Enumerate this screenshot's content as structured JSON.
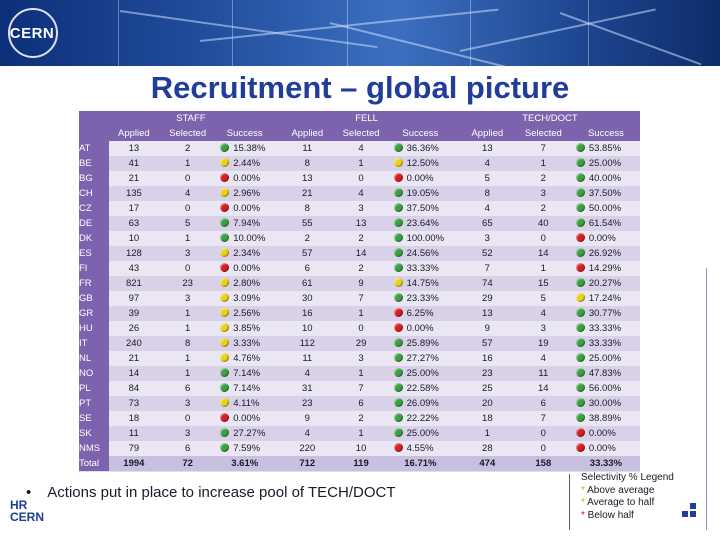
{
  "banner": {
    "logo_text": "CERN"
  },
  "title": "Recruitment – global picture",
  "colors": {
    "green": "#3aa040",
    "yellow": "#e8d21a",
    "red": "#d42020",
    "header_purple": "#7d63ad",
    "title_blue": "#1f3d99"
  },
  "table": {
    "groups": [
      "STAFF",
      "FELL",
      "TECH/DOCT"
    ],
    "subheaders": [
      "Applied",
      "Selected",
      "Success"
    ],
    "rows": [
      {
        "code": "AT",
        "staff": [
          "13",
          "2",
          "15.38%",
          "green"
        ],
        "fell": [
          "11",
          "4",
          "36.36%",
          "green"
        ],
        "tech": [
          "13",
          "7",
          "53.85%",
          "green"
        ]
      },
      {
        "code": "BE",
        "staff": [
          "41",
          "1",
          "2.44%",
          "yellow"
        ],
        "fell": [
          "8",
          "1",
          "12.50%",
          "yellow"
        ],
        "tech": [
          "4",
          "1",
          "25.00%",
          "green"
        ]
      },
      {
        "code": "BG",
        "staff": [
          "21",
          "0",
          "0.00%",
          "red"
        ],
        "fell": [
          "13",
          "0",
          "0.00%",
          "red"
        ],
        "tech": [
          "5",
          "2",
          "40.00%",
          "green"
        ]
      },
      {
        "code": "CH",
        "staff": [
          "135",
          "4",
          "2.96%",
          "yellow"
        ],
        "fell": [
          "21",
          "4",
          "19.05%",
          "green"
        ],
        "tech": [
          "8",
          "3",
          "37.50%",
          "green"
        ]
      },
      {
        "code": "CZ",
        "staff": [
          "17",
          "0",
          "0.00%",
          "red"
        ],
        "fell": [
          "8",
          "3",
          "37.50%",
          "green"
        ],
        "tech": [
          "4",
          "2",
          "50.00%",
          "green"
        ]
      },
      {
        "code": "DE",
        "staff": [
          "63",
          "5",
          "7.94%",
          "green"
        ],
        "fell": [
          "55",
          "13",
          "23.64%",
          "green"
        ],
        "tech": [
          "65",
          "40",
          "61.54%",
          "green"
        ]
      },
      {
        "code": "DK",
        "staff": [
          "10",
          "1",
          "10.00%",
          "green"
        ],
        "fell": [
          "2",
          "2",
          "100.00%",
          "green"
        ],
        "tech": [
          "3",
          "0",
          "0.00%",
          "red"
        ]
      },
      {
        "code": "ES",
        "staff": [
          "128",
          "3",
          "2.34%",
          "yellow"
        ],
        "fell": [
          "57",
          "14",
          "24.56%",
          "green"
        ],
        "tech": [
          "52",
          "14",
          "26.92%",
          "green"
        ]
      },
      {
        "code": "FI",
        "staff": [
          "43",
          "0",
          "0.00%",
          "red"
        ],
        "fell": [
          "6",
          "2",
          "33.33%",
          "green"
        ],
        "tech": [
          "7",
          "1",
          "14.29%",
          "red"
        ]
      },
      {
        "code": "FR",
        "staff": [
          "821",
          "23",
          "2.80%",
          "yellow"
        ],
        "fell": [
          "61",
          "9",
          "14.75%",
          "yellow"
        ],
        "tech": [
          "74",
          "15",
          "20.27%",
          "green"
        ]
      },
      {
        "code": "GB",
        "staff": [
          "97",
          "3",
          "3.09%",
          "yellow"
        ],
        "fell": [
          "30",
          "7",
          "23.33%",
          "green"
        ],
        "tech": [
          "29",
          "5",
          "17.24%",
          "yellow"
        ]
      },
      {
        "code": "GR",
        "staff": [
          "39",
          "1",
          "2.56%",
          "yellow"
        ],
        "fell": [
          "16",
          "1",
          "6.25%",
          "red"
        ],
        "tech": [
          "13",
          "4",
          "30.77%",
          "green"
        ]
      },
      {
        "code": "HU",
        "staff": [
          "26",
          "1",
          "3.85%",
          "yellow"
        ],
        "fell": [
          "10",
          "0",
          "0.00%",
          "red"
        ],
        "tech": [
          "9",
          "3",
          "33.33%",
          "green"
        ]
      },
      {
        "code": "IT",
        "staff": [
          "240",
          "8",
          "3.33%",
          "yellow"
        ],
        "fell": [
          "112",
          "29",
          "25.89%",
          "green"
        ],
        "tech": [
          "57",
          "19",
          "33.33%",
          "green"
        ]
      },
      {
        "code": "NL",
        "staff": [
          "21",
          "1",
          "4.76%",
          "yellow"
        ],
        "fell": [
          "11",
          "3",
          "27.27%",
          "green"
        ],
        "tech": [
          "16",
          "4",
          "25.00%",
          "green"
        ]
      },
      {
        "code": "NO",
        "staff": [
          "14",
          "1",
          "7.14%",
          "green"
        ],
        "fell": [
          "4",
          "1",
          "25.00%",
          "green"
        ],
        "tech": [
          "23",
          "11",
          "47.83%",
          "green"
        ]
      },
      {
        "code": "PL",
        "staff": [
          "84",
          "6",
          "7.14%",
          "green"
        ],
        "fell": [
          "31",
          "7",
          "22.58%",
          "green"
        ],
        "tech": [
          "25",
          "14",
          "56.00%",
          "green"
        ]
      },
      {
        "code": "PT",
        "staff": [
          "73",
          "3",
          "4.11%",
          "yellow"
        ],
        "fell": [
          "23",
          "6",
          "26.09%",
          "green"
        ],
        "tech": [
          "20",
          "6",
          "30.00%",
          "green"
        ]
      },
      {
        "code": "SE",
        "staff": [
          "18",
          "0",
          "0.00%",
          "red"
        ],
        "fell": [
          "9",
          "2",
          "22.22%",
          "green"
        ],
        "tech": [
          "18",
          "7",
          "38.89%",
          "green"
        ]
      },
      {
        "code": "SK",
        "staff": [
          "11",
          "3",
          "27.27%",
          "green"
        ],
        "fell": [
          "4",
          "1",
          "25.00%",
          "green"
        ],
        "tech": [
          "1",
          "0",
          "0.00%",
          "red"
        ]
      },
      {
        "code": "NMS",
        "staff": [
          "79",
          "6",
          "7.59%",
          "green"
        ],
        "fell": [
          "220",
          "10",
          "4.55%",
          "red"
        ],
        "tech": [
          "28",
          "0",
          "0.00%",
          "red"
        ]
      }
    ],
    "total": {
      "code": "Total",
      "staff": [
        "1994",
        "72",
        "3.61%"
      ],
      "fell": [
        "712",
        "119",
        "16.71%"
      ],
      "tech": [
        "474",
        "158",
        "33.33%"
      ]
    }
  },
  "bullet": {
    "symbol": "•",
    "text": "Actions put in place to increase pool of TECH/DOCT"
  },
  "hr_logo": {
    "line1": "HR",
    "line2": "CERN"
  },
  "legend": {
    "title": "Selectivity % Legend",
    "items": [
      {
        "star": "*",
        "label": " Above average"
      },
      {
        "star": "*",
        "label": " Average to half"
      },
      {
        "star": "*",
        "label": " Below half"
      }
    ]
  }
}
